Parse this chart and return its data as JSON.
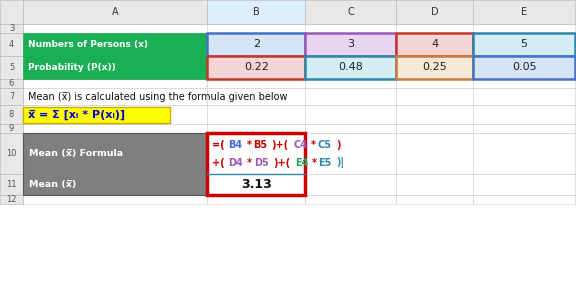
{
  "col_headers": [
    "",
    "A",
    "B",
    "C",
    "D",
    "E"
  ],
  "row4_A": "Numbers of Persons (x)",
  "row5_A": "Probability (P(x))",
  "row4_vals": [
    "2",
    "3",
    "4",
    "5"
  ],
  "row5_vals": [
    "0.22",
    "0.48",
    "0.25",
    "0.05"
  ],
  "row7_text": "Mean (x̅) is calculated using the formula given below",
  "row8_formula": "x̅ = Σ [xᵢ * P(xᵢ)]",
  "row10_label_text": "Mean (x̅) Formula",
  "row11_label_text": "Mean (x̅)",
  "mean_value": "3.13",
  "green_bg": "#1AAF54",
  "gray_bg": "#7F7F7F",
  "yellow_bg": "#FFFF00",
  "white": "#FFFFFF",
  "row4_cell_colors": [
    "#D6E4F7",
    "#E8D5F0",
    "#F5D5D5",
    "#D5EDF5"
  ],
  "row5_cell_colors": [
    "#F5D5D5",
    "#D5EDF5",
    "#F5E8D5",
    "#D6E4F7"
  ],
  "formula_border_color": "#CC0000",
  "col_border_colors_row4": [
    "#4472C4",
    "#9B59B6",
    "#C0392B",
    "#2E86AB"
  ],
  "col_border_colors_row5": [
    "#C0392B",
    "#2E86AB",
    "#C87941",
    "#4472C4"
  ],
  "bg_color": "#FFFFFF",
  "fig_width": 5.76,
  "fig_height": 2.82,
  "rows": [
    "3",
    "4",
    "5",
    "6",
    "7",
    "8",
    "9",
    "10",
    "11",
    "12"
  ],
  "line1_parts": [
    [
      "=(",
      "#CC0000"
    ],
    [
      "B4",
      "#4169E1"
    ],
    [
      "*",
      "#CC0000"
    ],
    [
      "B5",
      "#CC0000"
    ],
    [
      ")+(",
      "#CC0000"
    ],
    [
      "C4",
      "#9B59B6"
    ],
    [
      "*",
      "#CC0000"
    ],
    [
      "C5",
      "#2E86AB"
    ],
    [
      ")",
      "#CC0000"
    ]
  ],
  "line2_parts": [
    [
      "+(",
      "#CC0000"
    ],
    [
      "D4",
      "#9B59B6"
    ],
    [
      "*",
      "#CC0000"
    ],
    [
      "D5",
      "#9B59B6"
    ],
    [
      ")+(",
      "#CC0000"
    ],
    [
      "E4",
      "#1AAF54"
    ],
    [
      "*",
      "#CC0000"
    ],
    [
      "E5",
      "#2E86AB"
    ],
    [
      ")|",
      "#2E86AB"
    ]
  ]
}
